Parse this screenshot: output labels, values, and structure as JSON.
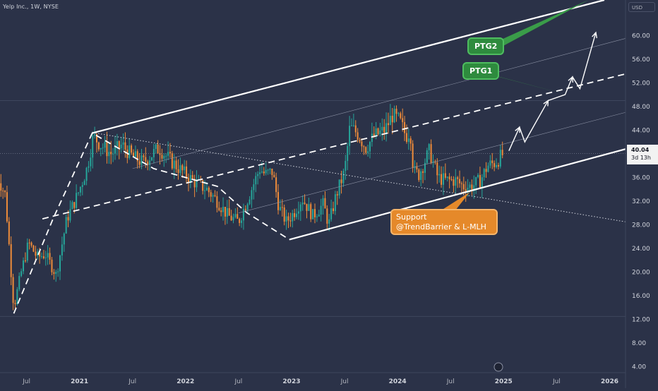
{
  "header": {
    "symbol_line": "Yelp Inc., 1W, NYSE"
  },
  "price_scale": {
    "currency": "USD",
    "last_price": "40.04",
    "countdown": "3d 13h"
  },
  "callouts": {
    "ptg2": "PTG2",
    "ptg1": "PTG1",
    "support_line1": "Support",
    "support_line2": "@TrendBarrier & L-MLH"
  },
  "colors": {
    "background": "#2b3248",
    "up": "#26a69a",
    "down": "#ef8c3a",
    "annotation": "#ffffff",
    "ptg": "#2e8b3e",
    "support": "#e5892a"
  },
  "chart_data": {
    "type": "candlestick",
    "x_axis": {
      "tick_labels": [
        "Jul",
        "2021",
        "Jul",
        "2022",
        "Jul",
        "2023",
        "Jul",
        "2024",
        "Jul",
        "2025",
        "Jul",
        "2026"
      ],
      "tick_dates": [
        2020.5,
        2021.0,
        2021.5,
        2022.0,
        2022.5,
        2023.0,
        2023.5,
        2024.0,
        2024.5,
        2025.0,
        2025.5,
        2026.0
      ],
      "range": [
        2020.25,
        2026.15
      ]
    },
    "y_axis": {
      "scale": "linear",
      "range": [
        3.0,
        66.0
      ],
      "ticks": [
        4.0,
        8.0,
        12.0,
        16.0,
        20.0,
        24.0,
        28.0,
        32.0,
        36.0,
        40.0,
        44.0,
        48.0,
        52.0,
        56.0,
        60.0
      ],
      "tick_labels": [
        "4.00",
        "8.00",
        "12.00",
        "16.00",
        "20.00",
        "24.00",
        "28.00",
        "32.00",
        "36.00",
        "40.00",
        "44.00",
        "48.00",
        "52.00",
        "56.00",
        "60.00"
      ]
    },
    "price_path": [
      [
        2020.22,
        36.5
      ],
      [
        2020.3,
        33.0
      ],
      [
        2020.38,
        14.0
      ],
      [
        2020.45,
        20.0
      ],
      [
        2020.52,
        25.0
      ],
      [
        2020.6,
        22.5
      ],
      [
        2020.68,
        23.0
      ],
      [
        2020.78,
        19.5
      ],
      [
        2020.88,
        29.0
      ],
      [
        2020.98,
        33.0
      ],
      [
        2021.07,
        37.5
      ],
      [
        2021.13,
        43.0
      ],
      [
        2021.2,
        41.5
      ],
      [
        2021.3,
        40.0
      ],
      [
        2021.4,
        41.5
      ],
      [
        2021.5,
        39.5
      ],
      [
        2021.6,
        38.5
      ],
      [
        2021.75,
        41.0
      ],
      [
        2021.85,
        39.0
      ],
      [
        2022.0,
        36.5
      ],
      [
        2022.1,
        35.0
      ],
      [
        2022.2,
        34.0
      ],
      [
        2022.3,
        32.0
      ],
      [
        2022.4,
        29.5
      ],
      [
        2022.5,
        28.5
      ],
      [
        2022.6,
        33.0
      ],
      [
        2022.7,
        37.5
      ],
      [
        2022.75,
        36.5
      ],
      [
        2022.82,
        37.0
      ],
      [
        2022.88,
        31.0
      ],
      [
        2022.95,
        28.5
      ],
      [
        2023.02,
        30.0
      ],
      [
        2023.1,
        32.5
      ],
      [
        2023.2,
        29.5
      ],
      [
        2023.3,
        31.5
      ],
      [
        2023.35,
        28.0
      ],
      [
        2023.42,
        33.0
      ],
      [
        2023.5,
        37.0
      ],
      [
        2023.55,
        44.5
      ],
      [
        2023.62,
        43.5
      ],
      [
        2023.7,
        41.0
      ],
      [
        2023.78,
        43.0
      ],
      [
        2023.88,
        44.0
      ],
      [
        2023.95,
        46.5
      ],
      [
        2024.02,
        45.5
      ],
      [
        2024.08,
        43.0
      ],
      [
        2024.12,
        44.0
      ],
      [
        2024.15,
        37.0
      ],
      [
        2024.2,
        36.5
      ],
      [
        2024.3,
        40.5
      ],
      [
        2024.38,
        36.0
      ],
      [
        2024.45,
        35.5
      ],
      [
        2024.55,
        35.5
      ],
      [
        2024.62,
        34.5
      ],
      [
        2024.7,
        34.5
      ],
      [
        2024.78,
        35.5
      ],
      [
        2024.85,
        38.0
      ],
      [
        2024.92,
        38.5
      ],
      [
        2025.0,
        40.04
      ]
    ],
    "annotations": {
      "upper_channel": [
        [
          2021.12,
          43.5
        ],
        [
          2025.95,
          66.0
        ]
      ],
      "median_dashed": [
        [
          2020.65,
          29.0
        ],
        [
          2026.15,
          53.5
        ]
      ],
      "lower_channel": [
        [
          2022.98,
          25.5
        ],
        [
          2026.15,
          40.8
        ]
      ],
      "descending_dotted": [
        [
          2021.15,
          43.5
        ],
        [
          2026.15,
          28.5
        ]
      ],
      "wave_path": [
        [
          2020.38,
          13.0
        ],
        [
          2020.75,
          29.0
        ],
        [
          2021.12,
          43.5
        ],
        [
          2021.7,
          37.5
        ],
        [
          2022.3,
          34.5
        ],
        [
          2022.58,
          30.0
        ],
        [
          2022.98,
          25.5
        ]
      ],
      "projection_path": [
        [
          2025.05,
          40.5
        ],
        [
          2025.15,
          44.5
        ],
        [
          2025.2,
          42.0
        ],
        [
          2025.42,
          49.0
        ],
        [
          2025.58,
          50.0
        ],
        [
          2025.65,
          53.0
        ],
        [
          2025.72,
          51.0
        ],
        [
          2025.87,
          60.5
        ]
      ],
      "ptg2_pointer": [
        2025.8,
        66.0
      ],
      "ptg1_pointer": [
        2025.6,
        50.0
      ],
      "support_pointer": [
        2024.68,
        33.5
      ]
    }
  }
}
